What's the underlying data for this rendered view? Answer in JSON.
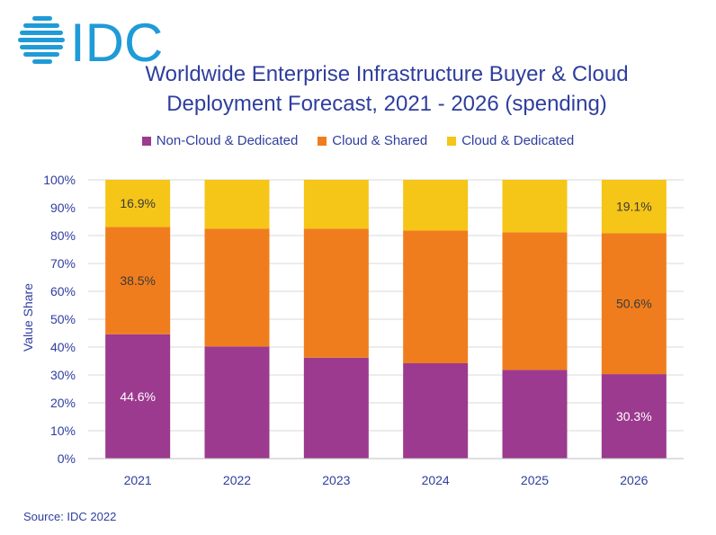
{
  "logo": {
    "text": "IDC",
    "color": "#1f9bd7"
  },
  "title": {
    "line1": "Worldwide Enterprise Infrastructure Buyer & Cloud",
    "line2": "Deployment Forecast, 2021 - 2026 (spending)"
  },
  "source": "Source: IDC 2022",
  "chart_data": {
    "type": "bar",
    "stacked": true,
    "percent_stacked": true,
    "title": "Worldwide Enterprise Infrastructure Buyer & Cloud Deployment Forecast, 2021 - 2026 (spending)",
    "xlabel": "",
    "ylabel": "Value Share",
    "ylim": [
      0,
      100
    ],
    "yticks": [
      "0%",
      "10%",
      "20%",
      "30%",
      "40%",
      "50%",
      "60%",
      "70%",
      "80%",
      "90%",
      "100%"
    ],
    "categories": [
      "2021",
      "2022",
      "2023",
      "2024",
      "2025",
      "2026"
    ],
    "legend_position": "top",
    "grid": true,
    "series": [
      {
        "name": "Non-Cloud & Dedicated",
        "color": "#9b3a8e",
        "values": [
          44.6,
          40.2,
          36.2,
          34.2,
          31.8,
          30.3
        ],
        "data_labels": [
          "44.6%",
          "",
          "",
          "",
          "",
          "30.3%"
        ]
      },
      {
        "name": "Cloud & Shared",
        "color": "#f07d1d",
        "values": [
          38.5,
          42.3,
          46.3,
          47.6,
          49.4,
          50.6
        ],
        "data_labels": [
          "38.5%",
          "",
          "",
          "",
          "",
          "50.6%"
        ]
      },
      {
        "name": "Cloud & Dedicated",
        "color": "#f5c518",
        "values": [
          16.9,
          17.5,
          17.5,
          18.2,
          18.8,
          19.1
        ],
        "data_labels": [
          "16.9%",
          "",
          "",
          "",
          "",
          "19.1%"
        ]
      }
    ]
  }
}
